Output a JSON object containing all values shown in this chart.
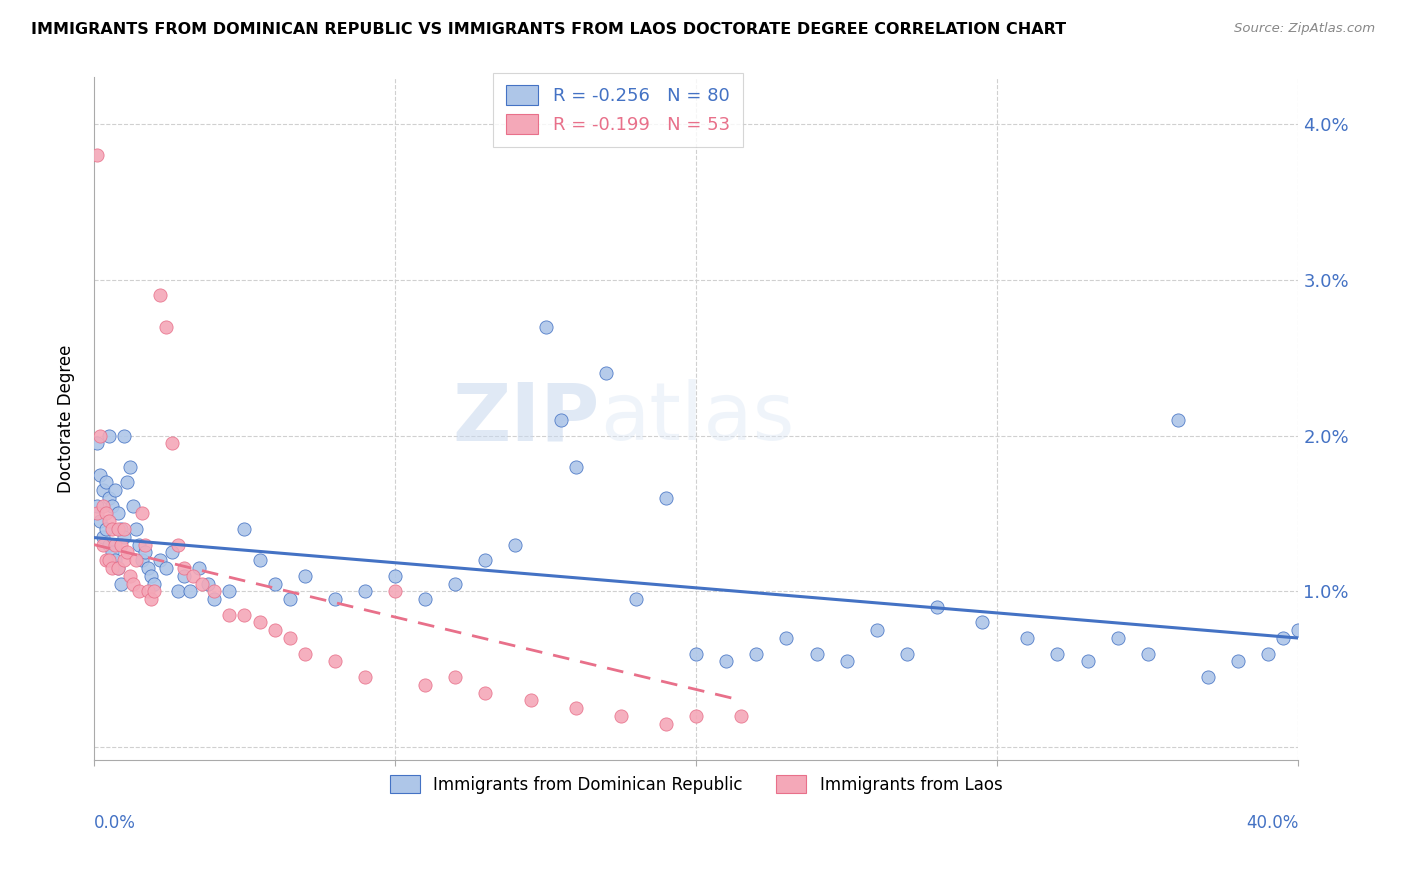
{
  "title": "IMMIGRANTS FROM DOMINICAN REPUBLIC VS IMMIGRANTS FROM LAOS DOCTORATE DEGREE CORRELATION CHART",
  "source": "Source: ZipAtlas.com",
  "ylabel": "Doctorate Degree",
  "yticks": [
    0.0,
    0.01,
    0.02,
    0.03,
    0.04
  ],
  "ytick_labels": [
    "",
    "1.0%",
    "2.0%",
    "3.0%",
    "4.0%"
  ],
  "xlim": [
    0.0,
    0.4
  ],
  "ylim": [
    -0.0008,
    0.043
  ],
  "legend_r1": "-0.256",
  "legend_n1": "80",
  "legend_r2": "-0.199",
  "legend_n2": "53",
  "color_blue": "#aec6e8",
  "color_pink": "#f4a8b8",
  "line_blue": "#4472c4",
  "line_pink": "#e8708a",
  "watermark_zip": "ZIP",
  "watermark_atlas": "atlas",
  "blue_scatter_x": [
    0.001,
    0.001,
    0.002,
    0.002,
    0.003,
    0.003,
    0.004,
    0.004,
    0.005,
    0.005,
    0.005,
    0.006,
    0.006,
    0.007,
    0.007,
    0.008,
    0.008,
    0.009,
    0.009,
    0.01,
    0.01,
    0.011,
    0.012,
    0.013,
    0.014,
    0.015,
    0.016,
    0.017,
    0.018,
    0.019,
    0.02,
    0.022,
    0.024,
    0.026,
    0.028,
    0.03,
    0.032,
    0.035,
    0.038,
    0.04,
    0.045,
    0.05,
    0.055,
    0.06,
    0.065,
    0.07,
    0.08,
    0.09,
    0.1,
    0.11,
    0.12,
    0.13,
    0.14,
    0.15,
    0.155,
    0.16,
    0.17,
    0.18,
    0.19,
    0.2,
    0.21,
    0.22,
    0.23,
    0.24,
    0.25,
    0.26,
    0.27,
    0.28,
    0.295,
    0.31,
    0.32,
    0.33,
    0.34,
    0.35,
    0.36,
    0.37,
    0.38,
    0.39,
    0.395,
    0.4
  ],
  "blue_scatter_y": [
    0.0195,
    0.0155,
    0.0175,
    0.0145,
    0.0165,
    0.0135,
    0.017,
    0.014,
    0.016,
    0.013,
    0.02,
    0.0155,
    0.0125,
    0.0165,
    0.012,
    0.015,
    0.0115,
    0.014,
    0.0105,
    0.0135,
    0.02,
    0.017,
    0.018,
    0.0155,
    0.014,
    0.013,
    0.012,
    0.0125,
    0.0115,
    0.011,
    0.0105,
    0.012,
    0.0115,
    0.0125,
    0.01,
    0.011,
    0.01,
    0.0115,
    0.0105,
    0.0095,
    0.01,
    0.014,
    0.012,
    0.0105,
    0.0095,
    0.011,
    0.0095,
    0.01,
    0.011,
    0.0095,
    0.0105,
    0.012,
    0.013,
    0.027,
    0.021,
    0.018,
    0.024,
    0.0095,
    0.016,
    0.006,
    0.0055,
    0.006,
    0.007,
    0.006,
    0.0055,
    0.0075,
    0.006,
    0.009,
    0.008,
    0.007,
    0.006,
    0.0055,
    0.007,
    0.006,
    0.021,
    0.0045,
    0.0055,
    0.006,
    0.007,
    0.0075
  ],
  "pink_scatter_x": [
    0.001,
    0.001,
    0.002,
    0.003,
    0.003,
    0.004,
    0.004,
    0.005,
    0.005,
    0.006,
    0.006,
    0.007,
    0.008,
    0.008,
    0.009,
    0.01,
    0.01,
    0.011,
    0.012,
    0.013,
    0.014,
    0.015,
    0.016,
    0.017,
    0.018,
    0.019,
    0.02,
    0.022,
    0.024,
    0.026,
    0.028,
    0.03,
    0.033,
    0.036,
    0.04,
    0.045,
    0.05,
    0.055,
    0.06,
    0.065,
    0.07,
    0.08,
    0.09,
    0.1,
    0.11,
    0.12,
    0.13,
    0.145,
    0.16,
    0.175,
    0.19,
    0.2,
    0.215
  ],
  "pink_scatter_y": [
    0.038,
    0.015,
    0.02,
    0.0155,
    0.013,
    0.015,
    0.012,
    0.0145,
    0.012,
    0.014,
    0.0115,
    0.013,
    0.014,
    0.0115,
    0.013,
    0.014,
    0.012,
    0.0125,
    0.011,
    0.0105,
    0.012,
    0.01,
    0.015,
    0.013,
    0.01,
    0.0095,
    0.01,
    0.029,
    0.027,
    0.0195,
    0.013,
    0.0115,
    0.011,
    0.0105,
    0.01,
    0.0085,
    0.0085,
    0.008,
    0.0075,
    0.007,
    0.006,
    0.0055,
    0.0045,
    0.01,
    0.004,
    0.0045,
    0.0035,
    0.003,
    0.0025,
    0.002,
    0.0015,
    0.002,
    0.002
  ],
  "blue_line_x0": 0.0,
  "blue_line_x1": 0.4,
  "blue_line_y0": 0.01345,
  "blue_line_y1": 0.007,
  "pink_line_x0": 0.0,
  "pink_line_x1": 0.215,
  "pink_line_y0": 0.013,
  "pink_line_y1": 0.003
}
